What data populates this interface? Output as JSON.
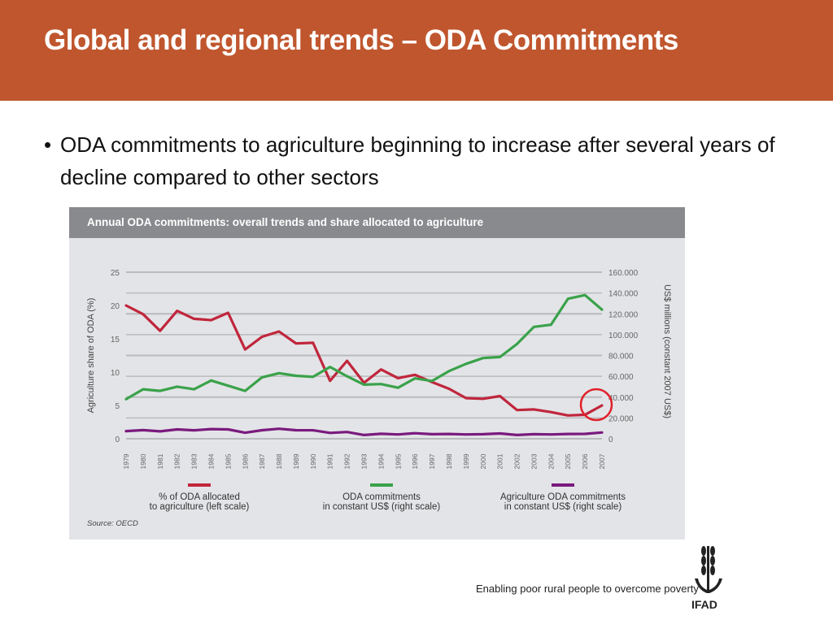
{
  "slide": {
    "title": "Global and regional trends – ODA Commitments",
    "bullet_symbol": "•",
    "bullet": "ODA commitments to agriculture beginning to increase after several years of decline compared to other sectors",
    "tagline": "Enabling poor rural people to overcome poverty",
    "logo_text": "IFAD"
  },
  "colors": {
    "title_bar": "#c0562e",
    "share_line": "#c0263c",
    "oda_line": "#3aa24a",
    "agri_line": "#7a1a7e",
    "highlight_circle": "#e0212b",
    "grid": "#b9babd"
  },
  "icons": {
    "logo": "ifad-wheat-logo-icon"
  },
  "chart_data": {
    "type": "line",
    "title": "Annual ODA commitments: overall trends and share allocated to agriculture",
    "ylabel_left": "Agriculture share of ODA (%)",
    "ylabel_right": "US$ millions (constant 2007 US$)",
    "ylim_left": [
      0,
      25
    ],
    "ylim_right": [
      0,
      160000
    ],
    "yticks_left": [
      "0",
      "5",
      "10",
      "15",
      "20",
      "25"
    ],
    "yticks_right": [
      "0",
      "20.000",
      "40.000",
      "60.000",
      "80.000",
      "100.000",
      "120.000",
      "140.000",
      "160.000"
    ],
    "categories": [
      "1979",
      "1980",
      "1981",
      "1982",
      "1983",
      "1984",
      "1985",
      "1986",
      "1987",
      "1988",
      "1989",
      "1990",
      "1991",
      "1992",
      "1993",
      "1994",
      "1995",
      "1996",
      "1997",
      "1998",
      "1999",
      "2000",
      "2001",
      "2002",
      "2003",
      "2004",
      "2005",
      "2006",
      "2007"
    ],
    "grid": true,
    "legend_placement": "bottom",
    "series": [
      {
        "name": "% of ODA allocated\nto agriculture (left scale)",
        "axis": "left",
        "color_key": "share_line",
        "values": [
          20.0,
          18.7,
          16.2,
          19.2,
          18.0,
          17.8,
          18.9,
          13.4,
          15.3,
          16.1,
          14.3,
          14.4,
          8.7,
          11.7,
          8.4,
          10.4,
          9.1,
          9.6,
          8.5,
          7.5,
          6.1,
          6.0,
          6.4,
          4.3,
          4.4,
          4.0,
          3.5,
          3.6,
          5.0
        ]
      },
      {
        "name": "ODA commitments\nin constant US$ (right scale)",
        "axis": "right",
        "color_key": "oda_line",
        "values": [
          38000,
          47500,
          46000,
          50000,
          47500,
          56000,
          51000,
          46000,
          59000,
          63000,
          60500,
          59500,
          69000,
          60000,
          52000,
          52500,
          49000,
          58000,
          55500,
          65000,
          72000,
          77500,
          78500,
          91000,
          107500,
          109500,
          134500,
          138000,
          124000
        ]
      },
      {
        "name": "Agriculture ODA commitments\nin constant US$ (right scale)",
        "axis": "right",
        "color_key": "agri_line",
        "values": [
          7300,
          8300,
          7100,
          9000,
          8100,
          9300,
          9000,
          5800,
          8200,
          9600,
          8200,
          8100,
          5600,
          6500,
          3600,
          4800,
          4100,
          5300,
          4400,
          4600,
          4100,
          4400,
          5100,
          3600,
          4400,
          4100,
          4600,
          4700,
          6000
        ]
      }
    ],
    "annotations": [
      "highlight circle around the 2007 rise of the agriculture share"
    ],
    "source": "Source: OECD"
  }
}
